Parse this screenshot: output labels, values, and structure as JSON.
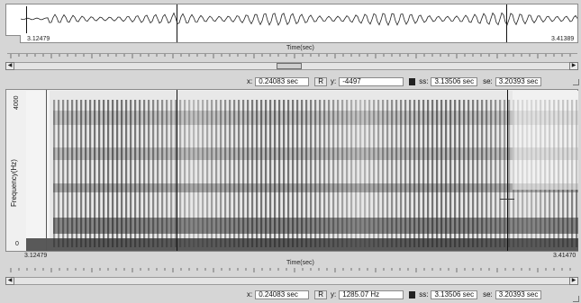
{
  "waveform": {
    "start_label": "3.12479",
    "end_label": "3.41389",
    "axis_title": "Time(sec)"
  },
  "status_top": {
    "x_label": "x:",
    "x_value": "0.24083 sec",
    "r_button": "R",
    "y_label": "y:",
    "y_value": "-4497",
    "ss_label": "ss:",
    "ss_value": "3.13506 sec",
    "se_label": "se:",
    "se_value": "3.20393 sec"
  },
  "spectrogram": {
    "y_axis_title": "Frequency(Hz)",
    "y_max_label": "4000",
    "y_min_label": "0",
    "start_label": "3.12479",
    "end_label": "3.41470",
    "axis_title": "Time(sec)"
  },
  "status_bottom": {
    "x_label": "x:",
    "x_value": "0.24083 sec",
    "r_button": "R",
    "y_label": "y:",
    "y_value": "1285.07 Hz",
    "ss_label": "ss:",
    "ss_value": "3.13506 sec",
    "se_label": "se:",
    "se_value": "3.20393 sec"
  },
  "colors": {
    "background": "#d6d6d6",
    "spectrogram_dark": "#1a1a1a",
    "spectrogram_light": "#f2f2f2"
  },
  "icons": {
    "scroll_left": "◀",
    "scroll_right": "▶"
  }
}
